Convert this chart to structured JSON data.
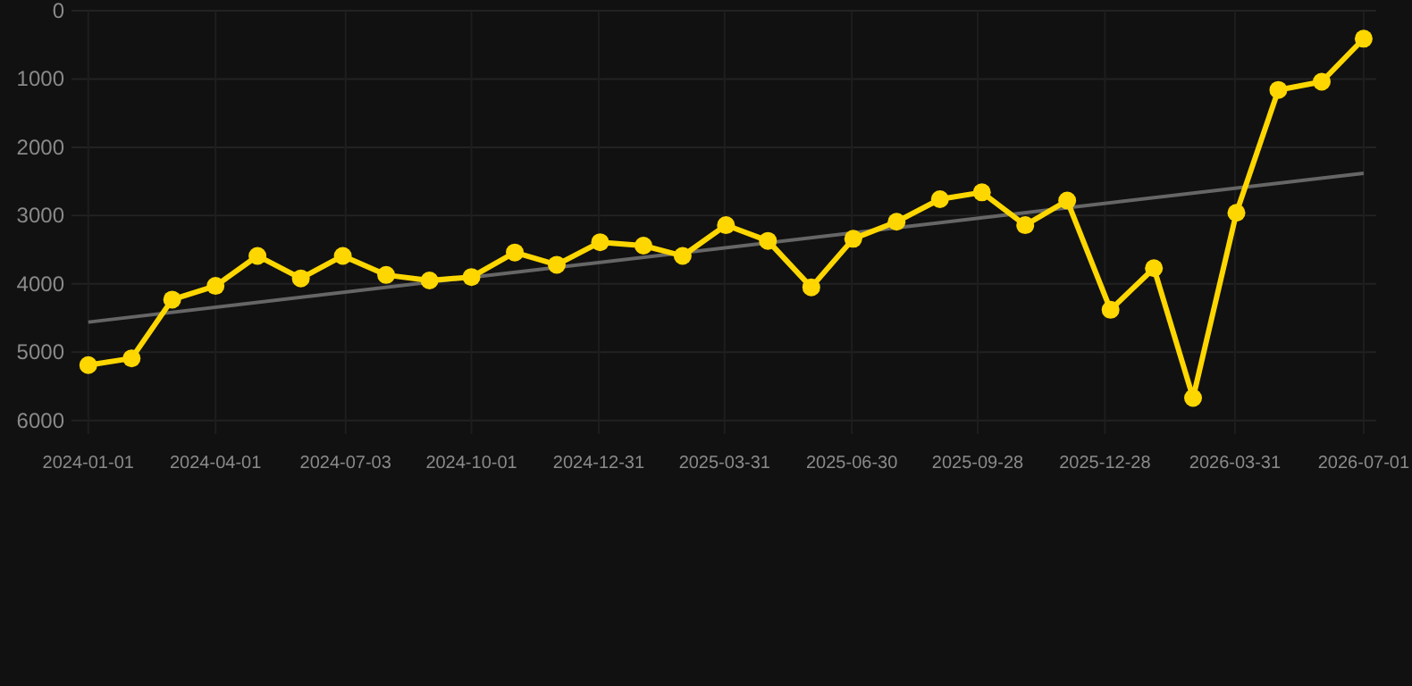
{
  "chart_data": {
    "type": "line",
    "x": [
      "2024-01-01",
      "2024-02-01",
      "2024-03-01",
      "2024-04-01",
      "2024-05-01",
      "2024-06-01",
      "2024-07-01",
      "2024-08-01",
      "2024-09-01",
      "2024-10-01",
      "2024-11-01",
      "2024-12-01",
      "2025-01-01",
      "2025-02-01",
      "2025-03-01",
      "2025-04-01",
      "2025-05-01",
      "2025-06-01",
      "2025-07-01",
      "2025-08-01",
      "2025-09-01",
      "2025-10-01",
      "2025-11-01",
      "2025-12-01",
      "2026-01-01",
      "2026-02-01",
      "2026-03-01",
      "2026-04-01",
      "2026-05-01",
      "2026-06-01",
      "2026-07-01"
    ],
    "series": [
      {
        "color": "#ffd700",
        "marker": "circle",
        "values": [
          5190,
          5090,
          4230,
          4030,
          3590,
          3920,
          3590,
          3870,
          3950,
          3900,
          3540,
          3720,
          3390,
          3440,
          3590,
          3140,
          3370,
          4050,
          3340,
          3090,
          2760,
          2660,
          3140,
          2780,
          4380,
          3770,
          5670,
          2960,
          1160,
          1040,
          410
        ]
      },
      {
        "type": "line",
        "color": "#666666",
        "marker": "none",
        "x": [
          "2024-01-01",
          "2026-07-01"
        ],
        "values": [
          4560,
          2380
        ]
      }
    ],
    "ylim": [
      6200,
      0
    ],
    "yticks": [
      0,
      1000,
      2000,
      3000,
      4000,
      5000,
      6000
    ],
    "xlim": [
      "2023-12-20",
      "2026-07-10"
    ],
    "xticks": [
      "2024-01-01",
      "2024-04-01",
      "2024-07-03",
      "2024-10-01",
      "2024-12-31",
      "2025-03-31",
      "2025-06-30",
      "2025-09-28",
      "2025-12-28",
      "2026-03-31",
      "2026-07-01"
    ],
    "grid": true,
    "line_style": "solid"
  }
}
